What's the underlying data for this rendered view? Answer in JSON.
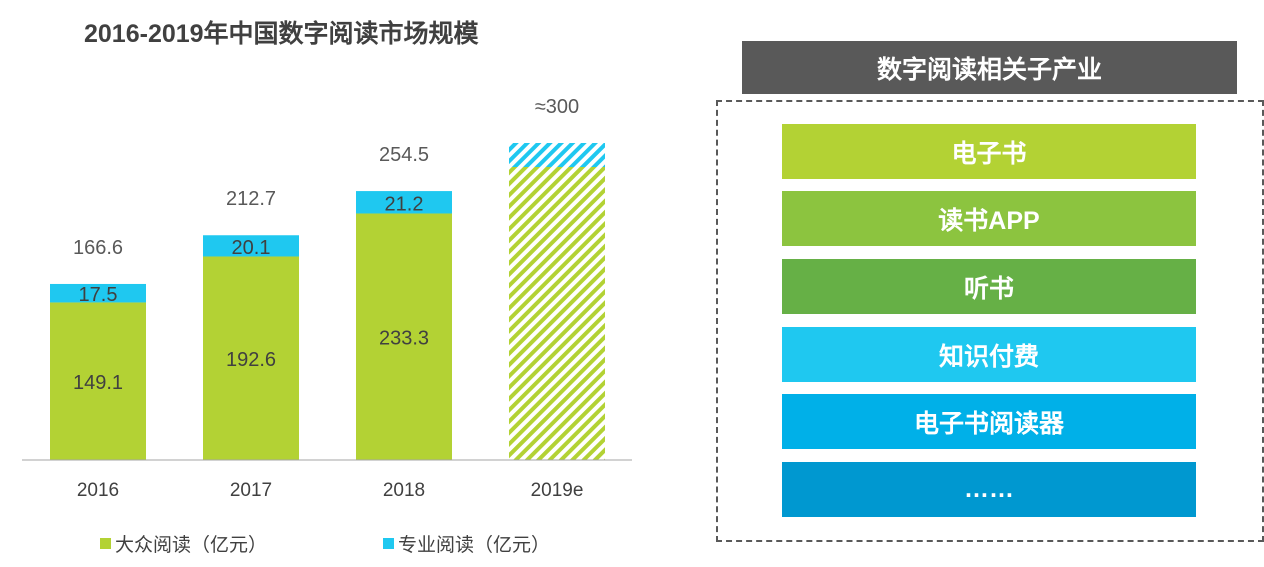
{
  "chart_data": {
    "type": "bar",
    "title": "2016-2019年中国数字阅读市场规模",
    "categories": [
      "2016",
      "2017",
      "2018",
      "2019e"
    ],
    "series": [
      {
        "name": "大众阅读（亿元）",
        "values": [
          149.1,
          192.6,
          233.3,
          null
        ],
        "color": "#b3d234"
      },
      {
        "name": "专业阅读（亿元）",
        "values": [
          17.5,
          20.1,
          21.2,
          null
        ],
        "color": "#1fc8f0"
      }
    ],
    "totals": [
      "166.6",
      "212.7",
      "254.5",
      "≈300"
    ],
    "estimate": {
      "category": "2019e",
      "total": 300,
      "style": "hatched"
    },
    "xlabel": "",
    "ylabel": "",
    "ylim": [
      0,
      300
    ],
    "grid": false,
    "legend": "bottom"
  },
  "panel": {
    "title": "数字阅读相关子产业",
    "items": [
      {
        "label": "电子书",
        "color": "#b3d234"
      },
      {
        "label": "读书APP",
        "color": "#8cc43f"
      },
      {
        "label": "听书",
        "color": "#66b046"
      },
      {
        "label": "知识付费",
        "color": "#1fc8f0"
      },
      {
        "label": "电子书阅读器",
        "color": "#00b0e8"
      },
      {
        "label": "……",
        "color": "#0098d0"
      }
    ]
  }
}
